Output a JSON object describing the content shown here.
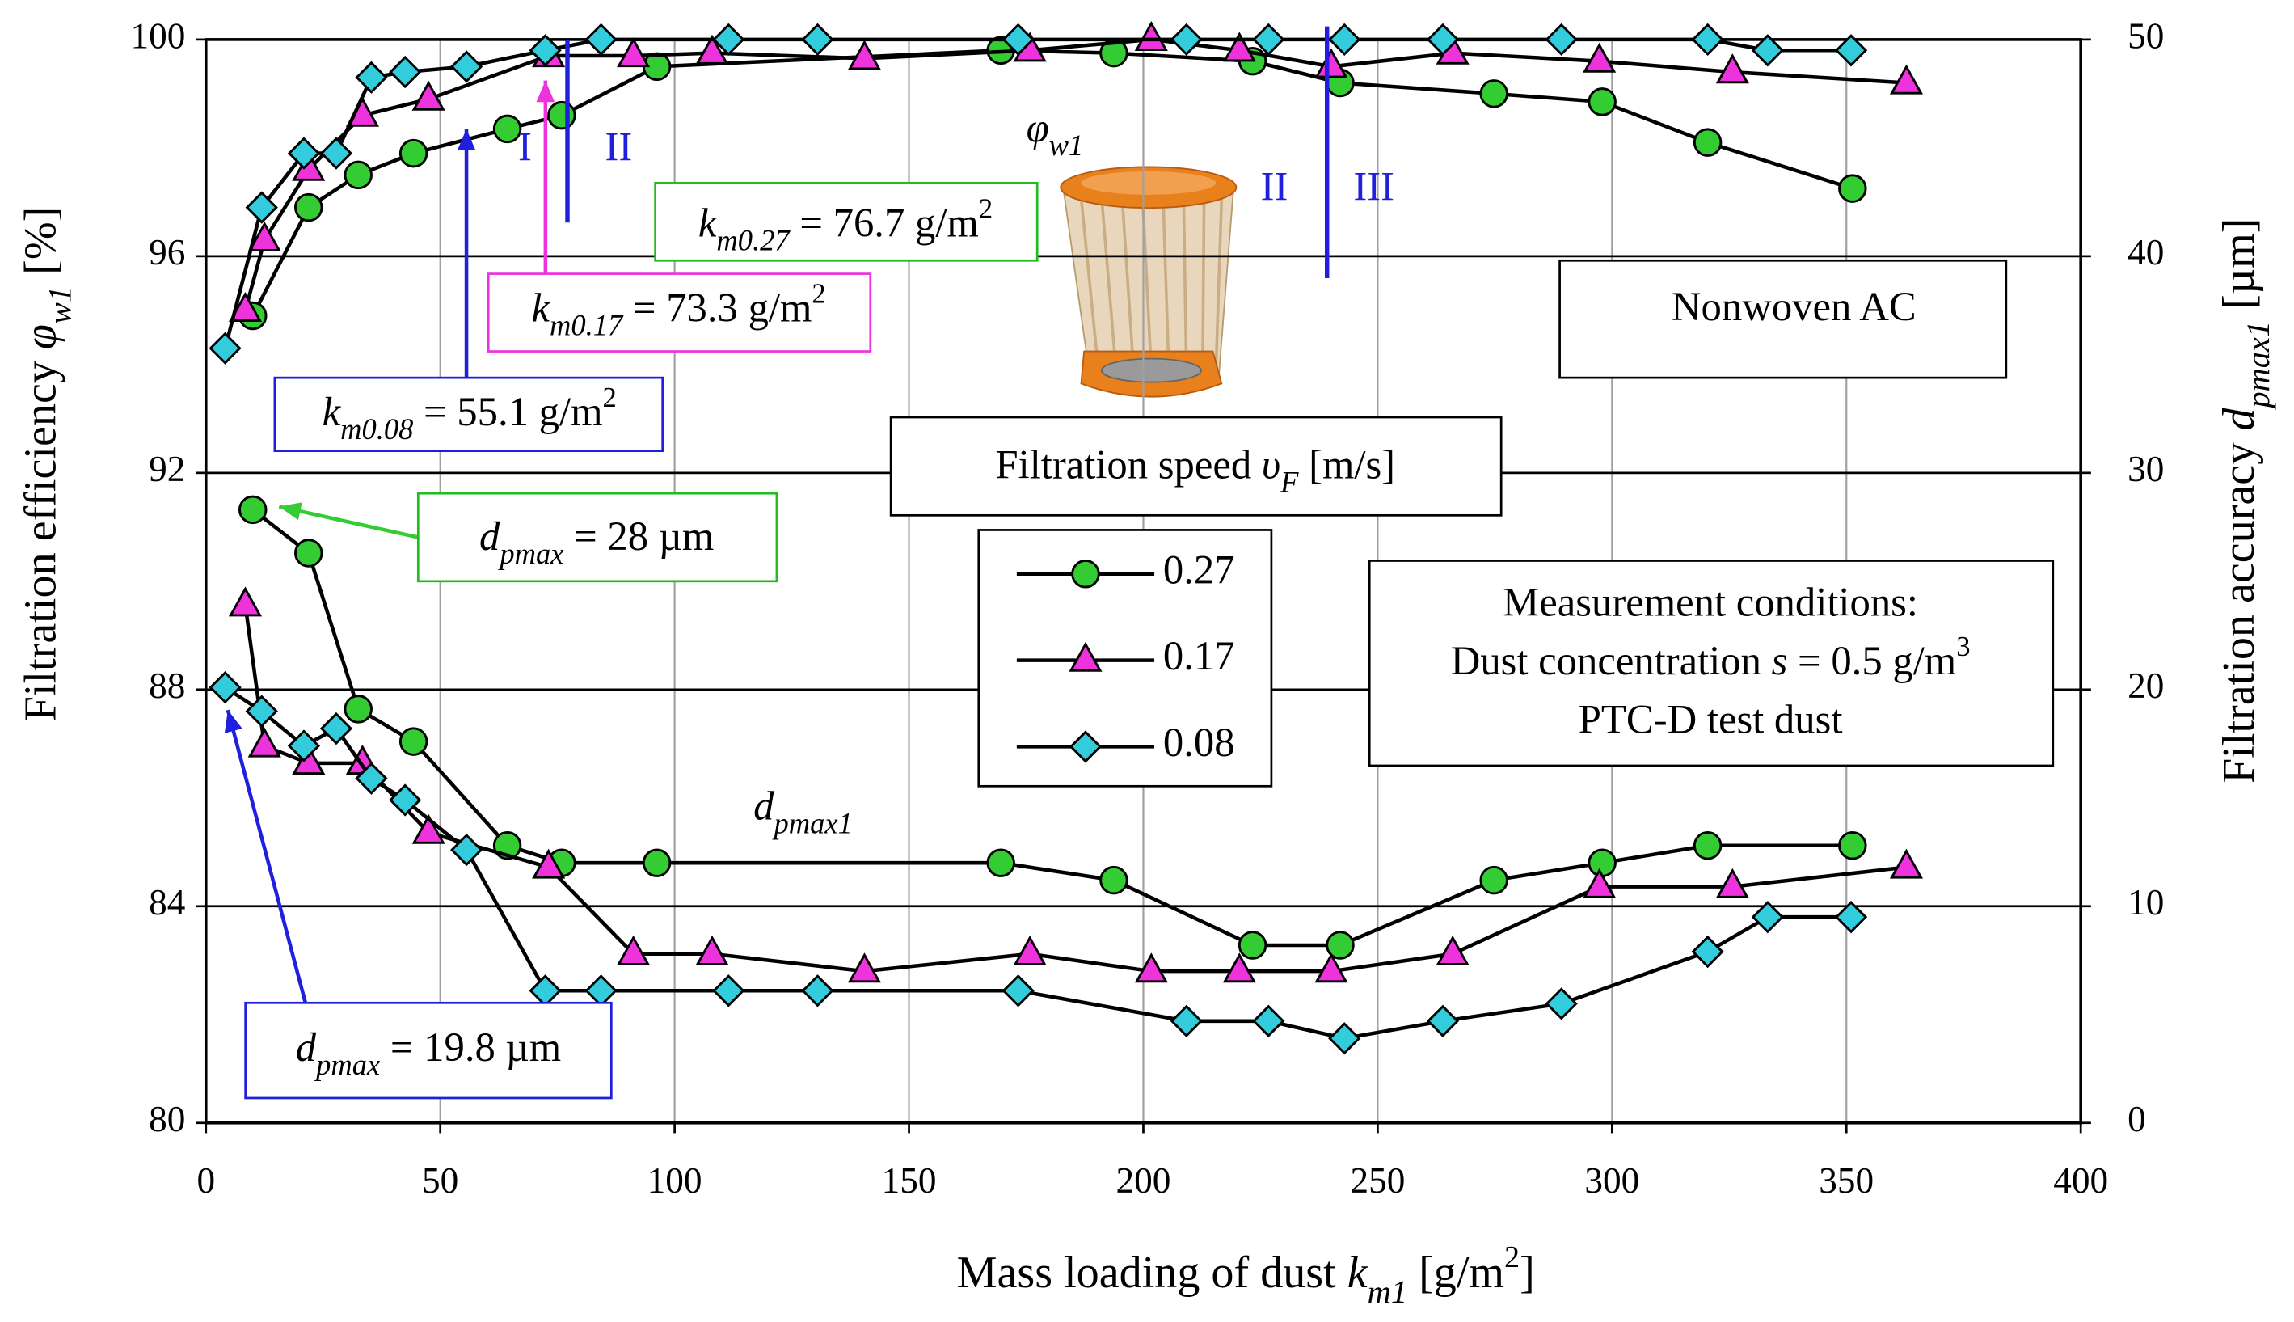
{
  "chart_data": {
    "type": "line",
    "xlabel": [
      {
        "text": "Mass loading of dust "
      },
      {
        "text": "k",
        "style": "italic"
      },
      {
        "text": "m1",
        "style": "italic-sub"
      },
      {
        "text": " [g/m"
      },
      {
        "text": "2",
        "style": "sup"
      },
      {
        "text": "]"
      }
    ],
    "ylabel": [
      {
        "text": "Filtration efficiency "
      },
      {
        "text": "φ",
        "style": "italic"
      },
      {
        "text": "w1",
        "style": "italic-sub"
      },
      {
        "text": " [%]"
      }
    ],
    "y2label": [
      {
        "text": "Filtration accuracy "
      },
      {
        "text": "d",
        "style": "italic"
      },
      {
        "text": "pmax1",
        "style": "italic-sub"
      },
      {
        "text": " [µm]"
      }
    ],
    "xlim": [
      0,
      400
    ],
    "xticks": [
      0,
      50,
      100,
      150,
      200,
      250,
      300,
      350,
      400
    ],
    "ylim": [
      80,
      100
    ],
    "yticks": [
      80,
      84,
      88,
      92,
      96,
      100
    ],
    "y2lim": [
      0,
      50
    ],
    "y2ticks": [
      0,
      10,
      20,
      30,
      40,
      50
    ],
    "grid": true,
    "legend_title": [
      {
        "text": "Filtration speed "
      },
      {
        "text": "υ",
        "style": "italic"
      },
      {
        "text": "F",
        "style": "italic-sub"
      },
      {
        "text": " [m/s]"
      }
    ],
    "series": [
      {
        "name": "0.27",
        "color": "#33cc33",
        "marker": "circle",
        "efficiency": {
          "x": [
            10,
            21.9,
            32.5,
            44.3,
            64.3,
            75.9,
            96.2,
            169.6,
            193.7,
            223.3,
            242,
            274.8,
            297.9,
            320.4,
            351.3
          ],
          "values": [
            94.9,
            96.9,
            97.5,
            97.9,
            98.35,
            98.6,
            99.5,
            99.8,
            99.75,
            99.6,
            99.2,
            99.0,
            98.85,
            98.1,
            97.25
          ]
        },
        "accuracy": {
          "axis": "y2",
          "x": [
            10,
            21.9,
            32.5,
            44.3,
            64.3,
            75.9,
            96.2,
            169.6,
            193.7,
            223.3,
            242,
            274.8,
            297.9,
            320.4,
            351.3
          ],
          "values": [
            28.3,
            26.3,
            19.1,
            17.6,
            12.8,
            12.0,
            12.0,
            12.0,
            11.2,
            8.2,
            8.2,
            11.2,
            12.0,
            12.8,
            12.8
          ]
        }
      },
      {
        "name": "0.17",
        "color": "#ee33dd",
        "marker": "triangle",
        "efficiency": {
          "x": [
            8.4,
            12.5,
            21.9,
            33.4,
            47.5,
            73.1,
            91.2,
            108,
            140.5,
            175.8,
            201.7,
            220.5,
            240.1,
            266,
            297.3,
            325.7,
            362.8
          ],
          "values": [
            95.0,
            96.3,
            97.6,
            98.6,
            98.9,
            99.7,
            99.7,
            99.75,
            99.65,
            99.8,
            100,
            99.8,
            99.5,
            99.75,
            99.6,
            99.4,
            99.2
          ]
        },
        "accuracy": {
          "axis": "y2",
          "x": [
            8.4,
            12.5,
            21.9,
            33.4,
            47.5,
            73.1,
            91.2,
            108,
            140.5,
            175.8,
            201.7,
            220.5,
            240.1,
            266,
            297.3,
            325.7,
            362.8
          ],
          "values": [
            23.9,
            17.4,
            16.6,
            16.6,
            13.4,
            11.8,
            7.8,
            7.8,
            7.0,
            7.8,
            7.0,
            7.0,
            7.0,
            7.8,
            10.9,
            10.9,
            11.8
          ]
        }
      },
      {
        "name": "0.08",
        "color": "#33ccdd",
        "marker": "diamond",
        "efficiency": {
          "x": [
            4.1,
            11.9,
            20.9,
            27.8,
            35.3,
            42.5,
            55.6,
            72.4,
            84.3,
            111.5,
            130.5,
            173.3,
            209.2,
            226.7,
            242.9,
            263.9,
            289.2,
            320.4,
            333.2,
            351
          ],
          "values": [
            94.3,
            96.9,
            97.9,
            97.9,
            99.3,
            99.4,
            99.5,
            99.8,
            100,
            100,
            100,
            100,
            100,
            100,
            100,
            100,
            100,
            100,
            99.8,
            99.8
          ]
        },
        "accuracy": {
          "axis": "y2",
          "x": [
            4.1,
            11.9,
            20.9,
            27.8,
            35.3,
            42.5,
            55.6,
            72.4,
            84.3,
            111.5,
            130.5,
            173.3,
            209.2,
            226.7,
            242.9,
            263.9,
            289.2,
            320.4,
            333.2,
            351
          ],
          "values": [
            20.1,
            19.0,
            17.4,
            18.2,
            15.9,
            14.9,
            12.6,
            6.1,
            6.1,
            6.1,
            6.1,
            6.1,
            4.7,
            4.7,
            3.9,
            4.7,
            5.5,
            7.9,
            9.5,
            9.5
          ]
        }
      }
    ],
    "annotations": [
      {
        "color": "#000000",
        "lines": [
          [
            {
              "text": "φ",
              "style": "italic"
            },
            {
              "text": "w1",
              "style": "italic-sub"
            }
          ]
        ]
      },
      {
        "color": "#000000",
        "lines": [
          [
            {
              "text": "d",
              "style": "italic"
            },
            {
              "text": "pmax1",
              "style": "italic-sub"
            }
          ]
        ]
      },
      {
        "color": "#1f1fdd",
        "lines": [
          [
            {
              "text": "I"
            }
          ]
        ]
      },
      {
        "color": "#1f1fdd",
        "lines": [
          [
            {
              "text": "II"
            }
          ]
        ]
      },
      {
        "color": "#1f1fdd",
        "lines": [
          [
            {
              "text": "II"
            }
          ]
        ]
      },
      {
        "color": "#1f1fdd",
        "lines": [
          [
            {
              "text": "III"
            }
          ]
        ]
      },
      {
        "color": "#22bb22",
        "box": true,
        "lines": [
          [
            {
              "text": "k",
              "style": "italic"
            },
            {
              "text": "m0.27",
              "style": "italic-sub"
            },
            {
              "text": " = 76.7 g/m"
            },
            {
              "text": "2",
              "style": "sup"
            }
          ]
        ]
      },
      {
        "color": "#ee33dd",
        "box": true,
        "lines": [
          [
            {
              "text": "k",
              "style": "italic"
            },
            {
              "text": "m0.17",
              "style": "italic-sub"
            },
            {
              "text": " = 73.3 g/m"
            },
            {
              "text": "2",
              "style": "sup"
            }
          ]
        ]
      },
      {
        "color": "#1f1fdd",
        "box": true,
        "lines": [
          [
            {
              "text": "k",
              "style": "italic"
            },
            {
              "text": "m0.08",
              "style": "italic-sub"
            },
            {
              "text": " = 55.1 g/m"
            },
            {
              "text": "2",
              "style": "sup"
            }
          ]
        ]
      },
      {
        "color": "#000000",
        "box": true,
        "lines": [
          [
            {
              "text": "Nonwoven AC"
            }
          ]
        ]
      },
      {
        "color": "#22bb22",
        "box": true,
        "lines": [
          [
            {
              "text": "d",
              "style": "italic"
            },
            {
              "text": "pmax",
              "style": "italic-sub"
            },
            {
              "text": " = 28 µm"
            }
          ]
        ]
      },
      {
        "color": "#1f1fdd",
        "box": true,
        "lines": [
          [
            {
              "text": "d",
              "style": "italic"
            },
            {
              "text": "pmax",
              "style": "italic-sub"
            },
            {
              "text": " = 19.8 µm"
            }
          ]
        ]
      },
      {
        "color": "#000000",
        "box": true,
        "lines": [
          [
            {
              "text": "Measurement conditions:"
            }
          ],
          [
            {
              "text": "Dust concentration "
            },
            {
              "text": "s",
              "style": "italic"
            },
            {
              "text": " = 0.5 g/m"
            },
            {
              "text": "3",
              "style": "sup"
            }
          ],
          [
            {
              "text": "PTC-D test dust"
            }
          ]
        ]
      }
    ]
  }
}
